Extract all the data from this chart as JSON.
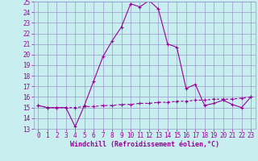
{
  "xlabel": "Windchill (Refroidissement éolien,°C)",
  "bg_color": "#c8eef0",
  "grid_color": "#9999cc",
  "line_color": "#990099",
  "xmin": -0.5,
  "xmax": 23.5,
  "ymin": 13,
  "ymax": 25,
  "yticks": [
    13,
    14,
    15,
    16,
    17,
    18,
    19,
    20,
    21,
    22,
    23,
    24,
    25
  ],
  "xticks": [
    0,
    1,
    2,
    3,
    4,
    5,
    6,
    7,
    8,
    9,
    10,
    11,
    12,
    13,
    14,
    15,
    16,
    17,
    18,
    19,
    20,
    21,
    22,
    23
  ],
  "line1_x": [
    0,
    1,
    2,
    3,
    4,
    5,
    6,
    7,
    8,
    9,
    10,
    11,
    12,
    13,
    14,
    15,
    16,
    17,
    18,
    19,
    20,
    21,
    22,
    23
  ],
  "line1_y": [
    15.2,
    15.0,
    15.0,
    15.0,
    13.2,
    15.2,
    17.5,
    19.8,
    21.3,
    22.6,
    24.8,
    24.5,
    25.1,
    24.3,
    21.0,
    20.7,
    16.8,
    17.2,
    15.2,
    15.4,
    15.7,
    15.3,
    15.0,
    16.0
  ],
  "line2_x": [
    0,
    1,
    2,
    3,
    4,
    5,
    6,
    7,
    8,
    9,
    10,
    11,
    12,
    13,
    14,
    15,
    16,
    17,
    18,
    19,
    20,
    21,
    22,
    23
  ],
  "line2_y": [
    15.2,
    15.0,
    15.0,
    15.0,
    15.0,
    15.1,
    15.1,
    15.2,
    15.2,
    15.3,
    15.3,
    15.4,
    15.4,
    15.5,
    15.5,
    15.6,
    15.6,
    15.7,
    15.7,
    15.8,
    15.8,
    15.8,
    15.9,
    16.0
  ],
  "tick_fontsize": 5.5,
  "xlabel_fontsize": 6.0
}
